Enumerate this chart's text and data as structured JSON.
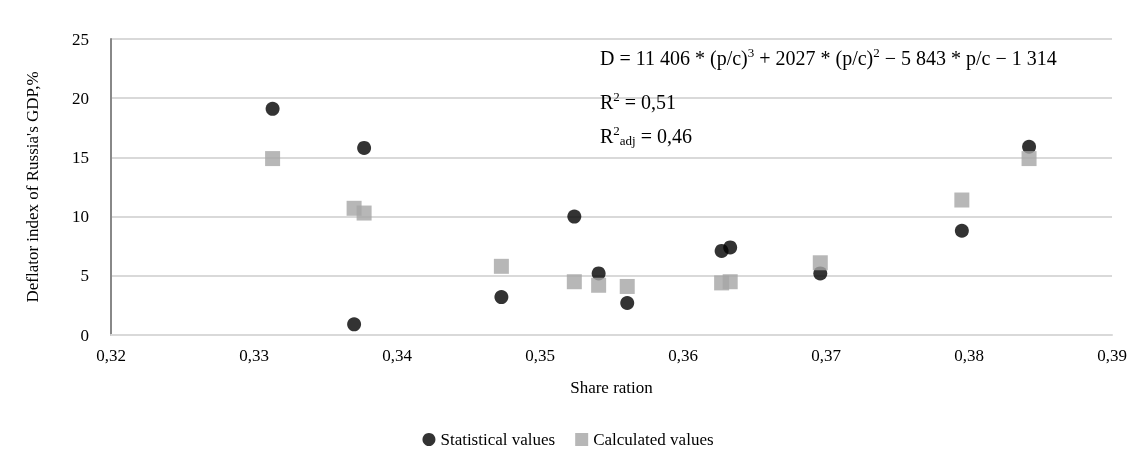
{
  "chart_data": {
    "type": "scatter",
    "xlabel": "Share ration",
    "ylabel": "Deflator index of Russia's GDP,%",
    "annotations": [
      "D = 11 406 * (p/c)$^{3}$ + 2027 * (p/c)$^{2}$ − 5 843 * p/c − 1 314",
      "R$^{2}$ = 0,51",
      "R$^{2}$$_{adj}$ = 0,46"
    ],
    "series": [
      {
        "name": "Statistical values",
        "color": "#000000",
        "marker": "circle",
        "x": [
          0.3313,
          0.3377,
          0.337,
          0.3473,
          0.3524,
          0.3541,
          0.3561,
          0.3627,
          0.3633,
          0.3696,
          0.3795,
          0.3842
        ],
        "values": [
          19.1,
          15.8,
          0.9,
          3.2,
          10.0,
          5.2,
          2.7,
          7.1,
          7.4,
          5.2,
          8.8,
          15.9
        ]
      },
      {
        "name": "Calculated values",
        "color": "#a5a5a5",
        "marker": "square",
        "x": [
          0.3313,
          0.337,
          0.3377,
          0.3473,
          0.3524,
          0.3541,
          0.3561,
          0.3627,
          0.3633,
          0.3696,
          0.3795,
          0.3842
        ],
        "values": [
          14.9,
          10.7,
          10.3,
          5.8,
          4.5,
          4.2,
          4.1,
          4.4,
          4.5,
          6.1,
          11.4,
          14.9
        ]
      }
    ],
    "xlim": [
      0.32,
      0.39
    ],
    "xticks": [
      {
        "value": 0.32,
        "label": "0,32"
      },
      {
        "value": 0.33,
        "label": "0,33"
      },
      {
        "value": 0.34,
        "label": "0,34"
      },
      {
        "value": 0.35,
        "label": "0,35"
      },
      {
        "value": 0.36,
        "label": "0,36"
      },
      {
        "value": 0.37,
        "label": "0,37"
      },
      {
        "value": 0.38,
        "label": "0,38"
      },
      {
        "value": 0.39,
        "label": "0,39"
      }
    ],
    "ylim": [
      0,
      25
    ],
    "yticks": [
      0,
      5,
      10,
      15,
      20,
      25
    ],
    "grid": "y",
    "legend": "bottom"
  }
}
